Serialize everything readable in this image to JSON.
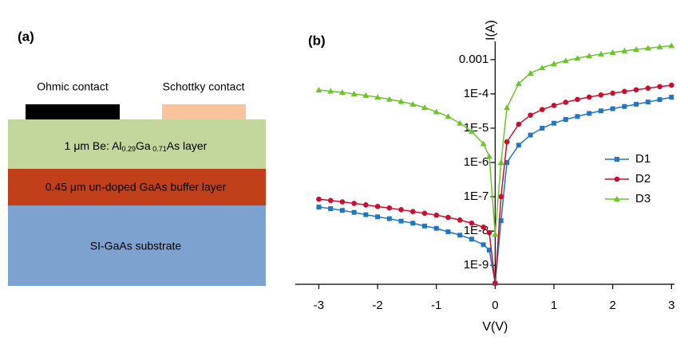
{
  "panel_a": {
    "label": "(a)",
    "contacts": [
      "Ohmic contact",
      "Schottky contact"
    ],
    "layers": [
      [
        "1 μm Be: Al",
        "0.29",
        "Ga",
        " 0.71",
        "As  layer"
      ],
      [
        "0.45 μm un-doped GaAs buffer layer"
      ],
      [
        "SI-GaAs substrate"
      ]
    ]
  },
  "chart_data": {
    "type": "line",
    "label": "(b)",
    "x_label": "V(V)",
    "y_label": "I(A)",
    "x": [
      -3,
      -2.8,
      -2.6,
      -2.4,
      -2.2,
      -2,
      -1.8,
      -1.6,
      -1.4,
      -1.2,
      -1,
      -0.8,
      -0.6,
      -0.4,
      -0.2,
      -0.1,
      0,
      0.1,
      0.2,
      0.4,
      0.6,
      0.8,
      1,
      1.2,
      1.4,
      1.6,
      1.8,
      2,
      2.2,
      2.4,
      2.6,
      2.8,
      3
    ],
    "series": [
      {
        "name": "D1",
        "color": "#1f77c4",
        "marker": "square",
        "values": [
          5e-08,
          4.5e-08,
          4e-08,
          3.5e-08,
          3e-08,
          2.6e-08,
          2.3e-08,
          1.95e-08,
          1.7e-08,
          1.4e-08,
          1.2e-08,
          9.5e-09,
          7.6e-09,
          5.8e-09,
          4e-09,
          2.8e-09,
          3e-10,
          2e-08,
          1e-06,
          3.2e-06,
          6.3e-06,
          1e-05,
          1.4e-05,
          1.8e-05,
          2.2e-05,
          2.7e-05,
          3.2e-05,
          3.7e-05,
          4.3e-05,
          5e-05,
          5.8e-05,
          6.8e-05,
          8e-05
        ]
      },
      {
        "name": "D2",
        "color": "#c8102e",
        "marker": "circle",
        "values": [
          8.5e-08,
          7.8e-08,
          7.1e-08,
          6.4e-08,
          5.8e-08,
          5.2e-08,
          4.7e-08,
          4.2e-08,
          3.7e-08,
          3.3e-08,
          2.9e-08,
          2.5e-08,
          2.1e-08,
          1.7e-08,
          1.3e-08,
          9e-09,
          3e-10,
          1e-07,
          4e-06,
          1.3e-05,
          2.4e-05,
          3.5e-05,
          4.6e-05,
          5.7e-05,
          6.9e-05,
          8.1e-05,
          9.3e-05,
          0.000105,
          0.000118,
          0.000132,
          0.000147,
          0.000163,
          0.00018
        ]
      },
      {
        "name": "D3",
        "color": "#6ac528",
        "marker": "triangle",
        "values": [
          0.00013,
          0.00012,
          0.00011,
          0.0001,
          9e-05,
          8e-05,
          7e-05,
          6e-05,
          5e-05,
          4e-05,
          3e-05,
          2.2e-05,
          1.4e-05,
          8e-06,
          3.5e-06,
          1.5e-06,
          8e-09,
          1e-06,
          4e-05,
          0.0002,
          0.0004,
          0.00058,
          0.00075,
          0.00093,
          0.0011,
          0.00128,
          0.00145,
          0.00162,
          0.0018,
          0.00198,
          0.00216,
          0.00235,
          0.00255
        ]
      }
    ],
    "xlim": [
      -3.4,
      3.05
    ],
    "xticks": [
      -3,
      -2,
      -1,
      0,
      1,
      2,
      3
    ],
    "ylim": [
      2.8e-10,
      0.0034
    ],
    "log_y": true,
    "yticks": [
      {
        "value": 1e-09,
        "label": "1E-9"
      },
      {
        "value": 1e-08,
        "label": "1E-8"
      },
      {
        "value": 1e-07,
        "label": "1E-7"
      },
      {
        "value": 1e-06,
        "label": "1E-6"
      },
      {
        "value": 1e-05,
        "label": "1E-5"
      },
      {
        "value": 0.0001,
        "label": "1E-4"
      },
      0.001
    ],
    "legend": "right"
  }
}
